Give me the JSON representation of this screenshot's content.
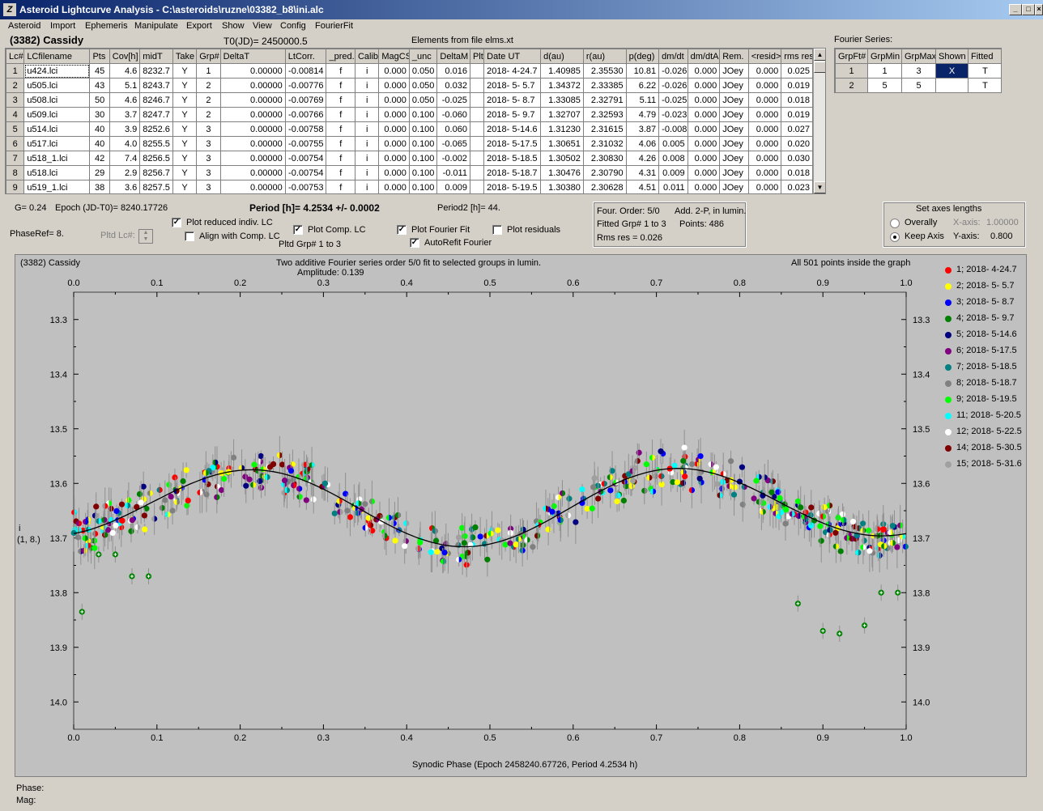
{
  "window": {
    "title": "Asteroid Lightcurve Analysis - C:\\asteroids\\ruzne\\03382_b8\\ini.alc"
  },
  "menu": [
    "Asteroid",
    "Import",
    "Ephemeris",
    "Manipulate",
    "Export",
    "Show",
    "View",
    "Config",
    "FourierFit"
  ],
  "header": {
    "object": "(3382) Cassidy",
    "t0": "T0(JD)= 2450000.5",
    "elements": "Elements from file elms.xt",
    "fourier_title": "Fourier Series:"
  },
  "lc_table": {
    "columns": [
      "Lc#",
      "LCfilename",
      "Pts",
      "Cov[h]",
      "midT",
      "Take",
      "Grp#",
      "DeltaT",
      "LtCorr.",
      "_pred.",
      "Calib.",
      "MagCS",
      "_unc",
      "DeltaM",
      "Plt",
      "Date UT",
      "d(au)",
      "r(au)",
      "p(deg)",
      "dm/dt",
      "dm/dtA",
      "Rem.",
      "<resid>",
      "rms res"
    ],
    "rows": [
      [
        "1",
        "u424.lci",
        "45",
        "4.6",
        "8232.7",
        "Y",
        "1",
        "0.00000",
        "-0.00814",
        "f",
        "i",
        "0.000",
        "0.050",
        "0.016",
        "",
        "2018- 4-24.7",
        "1.40985",
        "2.35530",
        "10.81",
        "-0.026",
        "0.000",
        "JOey",
        "0.000",
        "0.025"
      ],
      [
        "2",
        "u505.lci",
        "43",
        "5.1",
        "8243.7",
        "Y",
        "2",
        "0.00000",
        "-0.00776",
        "f",
        "i",
        "0.000",
        "0.050",
        "0.032",
        "",
        "2018- 5- 5.7",
        "1.34372",
        "2.33385",
        "6.22",
        "-0.026",
        "0.000",
        "JOey",
        "0.000",
        "0.019"
      ],
      [
        "3",
        "u508.lci",
        "50",
        "4.6",
        "8246.7",
        "Y",
        "2",
        "0.00000",
        "-0.00769",
        "f",
        "i",
        "0.000",
        "0.050",
        "-0.025",
        "",
        "2018- 5- 8.7",
        "1.33085",
        "2.32791",
        "5.11",
        "-0.025",
        "0.000",
        "JOey",
        "0.000",
        "0.018"
      ],
      [
        "4",
        "u509.lci",
        "30",
        "3.7",
        "8247.7",
        "Y",
        "2",
        "0.00000",
        "-0.00766",
        "f",
        "i",
        "0.000",
        "0.100",
        "-0.060",
        "",
        "2018- 5- 9.7",
        "1.32707",
        "2.32593",
        "4.79",
        "-0.023",
        "0.000",
        "JOey",
        "0.000",
        "0.019"
      ],
      [
        "5",
        "u514.lci",
        "40",
        "3.9",
        "8252.6",
        "Y",
        "3",
        "0.00000",
        "-0.00758",
        "f",
        "i",
        "0.000",
        "0.100",
        "0.060",
        "",
        "2018- 5-14.6",
        "1.31230",
        "2.31615",
        "3.87",
        "-0.008",
        "0.000",
        "JOey",
        "0.000",
        "0.027"
      ],
      [
        "6",
        "u517.lci",
        "40",
        "4.0",
        "8255.5",
        "Y",
        "3",
        "0.00000",
        "-0.00755",
        "f",
        "i",
        "0.000",
        "0.100",
        "-0.065",
        "",
        "2018- 5-17.5",
        "1.30651",
        "2.31032",
        "4.06",
        "0.005",
        "0.000",
        "JOey",
        "0.000",
        "0.020"
      ],
      [
        "7",
        "u518_1.lci",
        "42",
        "7.4",
        "8256.5",
        "Y",
        "3",
        "0.00000",
        "-0.00754",
        "f",
        "i",
        "0.000",
        "0.100",
        "-0.002",
        "",
        "2018- 5-18.5",
        "1.30502",
        "2.30830",
        "4.26",
        "0.008",
        "0.000",
        "JOey",
        "0.000",
        "0.030"
      ],
      [
        "8",
        "u518.lci",
        "29",
        "2.9",
        "8256.7",
        "Y",
        "3",
        "0.00000",
        "-0.00754",
        "f",
        "i",
        "0.000",
        "0.100",
        "-0.011",
        "",
        "2018- 5-18.7",
        "1.30476",
        "2.30790",
        "4.31",
        "0.009",
        "0.000",
        "JOey",
        "0.000",
        "0.018"
      ],
      [
        "9",
        "u519_1.lci",
        "38",
        "3.6",
        "8257.5",
        "Y",
        "3",
        "0.00000",
        "-0.00753",
        "f",
        "i",
        "0.000",
        "0.100",
        "0.009",
        "",
        "2018- 5-19.5",
        "1.30380",
        "2.30628",
        "4.51",
        "0.011",
        "0.000",
        "JOey",
        "0.000",
        "0.023"
      ]
    ]
  },
  "fourier_table": {
    "columns": [
      "GrpFt#",
      "GrpMin",
      "GrpMax",
      "Shown",
      "Fitted"
    ],
    "rows": [
      [
        "1",
        "1",
        "3",
        "X",
        "T"
      ],
      [
        "2",
        "5",
        "5",
        "",
        "T"
      ]
    ]
  },
  "info": {
    "g": "G= 0.24",
    "epoch": "Epoch (JD-T0)= 8240.17726",
    "period": "Period [h]= 4.2534 +/- 0.0002",
    "period2": "Period2 [h]= 44.",
    "phaseref": "PhaseRef= 8.",
    "pltd_lc": "Pltd Lc#:",
    "pltd_grp": "Pltd Grp#  1   to   3"
  },
  "checkboxes": {
    "plot_reduced": {
      "label": "Plot reduced indiv. LC",
      "checked": true
    },
    "align_comp": {
      "label": "Align with Comp. LC",
      "checked": false
    },
    "plot_comp": {
      "label": "Plot Comp. LC",
      "checked": true
    },
    "plot_fourier": {
      "label": "Plot Fourier Fit",
      "checked": true
    },
    "plot_residuals": {
      "label": "Plot residuals",
      "checked": false
    },
    "autorefit": {
      "label": "AutoRefit Fourier",
      "checked": true
    }
  },
  "fit_info": {
    "order": "Four. Order:  5/0",
    "add": "Add. 2-P, in lumin.",
    "fitted": "Fitted Grp# 1 to 3",
    "points": "Points: 486",
    "rms": "Rms res     = 0.026"
  },
  "axes_box": {
    "title": "Set axes lengths",
    "overally": "Overally",
    "keep": "Keep Axis",
    "xaxis_label": "X-axis:",
    "xaxis_val": "1.00000",
    "yaxis_label": "Y-axis:",
    "yaxis_val": "0.800",
    "selected": "keep"
  },
  "chart_header": {
    "object": "(3382) Cassidy",
    "desc": "Two additive Fourier series order 5/0 fit to selected groups in lumin.",
    "amplitude": "Amplitude: 0.139",
    "points_info": "All 501 points inside the graph",
    "ylabel1": "i",
    "ylabel2": "(1, 8.)"
  },
  "status": {
    "phase": "Phase:",
    "mag": "Mag:"
  },
  "chart_data": {
    "type": "scatter",
    "xlabel": "Synodic Phase (Epoch 2458240.67726, Period 4.2534 h)",
    "ylabel": "i (1, 8.)",
    "xlim": [
      0,
      1
    ],
    "ylim": [
      14.05,
      13.25
    ],
    "x_ticks": [
      "0.0",
      "0.1",
      "0.2",
      "0.3",
      "0.4",
      "0.5",
      "0.6",
      "0.7",
      "0.8",
      "0.9",
      "1.0"
    ],
    "y_ticks": [
      "13.3",
      "13.4",
      "13.5",
      "13.6",
      "13.7",
      "13.8",
      "13.9",
      "14.0"
    ],
    "fourier_fit": {
      "mean": 13.64,
      "amplitude": 0.139,
      "min_phase": [
        0.24,
        0.69
      ],
      "max_phase": [
        0.45,
        0.93
      ]
    },
    "series": [
      {
        "name": "1; 2018- 4-24.7",
        "color": "#ff0000"
      },
      {
        "name": "2; 2018- 5- 5.7",
        "color": "#ffff00"
      },
      {
        "name": "3; 2018- 5- 8.7",
        "color": "#0000ff"
      },
      {
        "name": "4; 2018- 5- 9.7",
        "color": "#008000"
      },
      {
        "name": "5; 2018- 5-14.6",
        "color": "#000080"
      },
      {
        "name": "6; 2018- 5-17.5",
        "color": "#800080"
      },
      {
        "name": "7; 2018- 5-18.5",
        "color": "#008080"
      },
      {
        "name": "8; 2018- 5-18.7",
        "color": "#808080"
      },
      {
        "name": "9; 2018- 5-19.5",
        "color": "#00ff00"
      },
      {
        "name": "11; 2018- 5-20.5",
        "color": "#00ffff"
      },
      {
        "name": "12; 2018- 5-22.5",
        "color": "#ffffff"
      },
      {
        "name": "14; 2018- 5-30.5",
        "color": "#800000"
      },
      {
        "name": "15; 2018- 5-31.6",
        "color": "#a0a0a0"
      }
    ],
    "outliers": [
      {
        "x": 0.01,
        "y": 13.835
      },
      {
        "x": 0.07,
        "y": 13.77
      },
      {
        "x": 0.09,
        "y": 13.77
      },
      {
        "x": 0.05,
        "y": 13.73
      },
      {
        "x": 0.03,
        "y": 13.73
      },
      {
        "x": 0.87,
        "y": 13.82
      },
      {
        "x": 0.9,
        "y": 13.87
      },
      {
        "x": 0.92,
        "y": 13.875
      },
      {
        "x": 0.95,
        "y": 13.86
      },
      {
        "x": 0.97,
        "y": 13.8
      },
      {
        "x": 0.99,
        "y": 13.8
      }
    ]
  }
}
